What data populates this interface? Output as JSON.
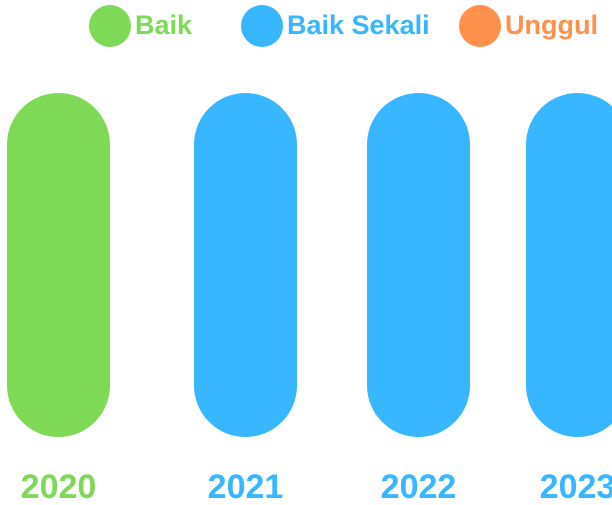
{
  "legend": [
    {
      "label": "Baik",
      "color": "#7ed957"
    },
    {
      "label": "Baik Sekali",
      "color": "#38b6ff"
    },
    {
      "label": "Unggul",
      "color": "#ff914d"
    }
  ],
  "years": [
    {
      "label": "2020",
      "color": "#7ed957"
    },
    {
      "label": "2021",
      "color": "#38b6ff"
    },
    {
      "label": "2022",
      "color": "#38b6ff"
    },
    {
      "label": "2023",
      "color": "#38b6ff"
    }
  ]
}
